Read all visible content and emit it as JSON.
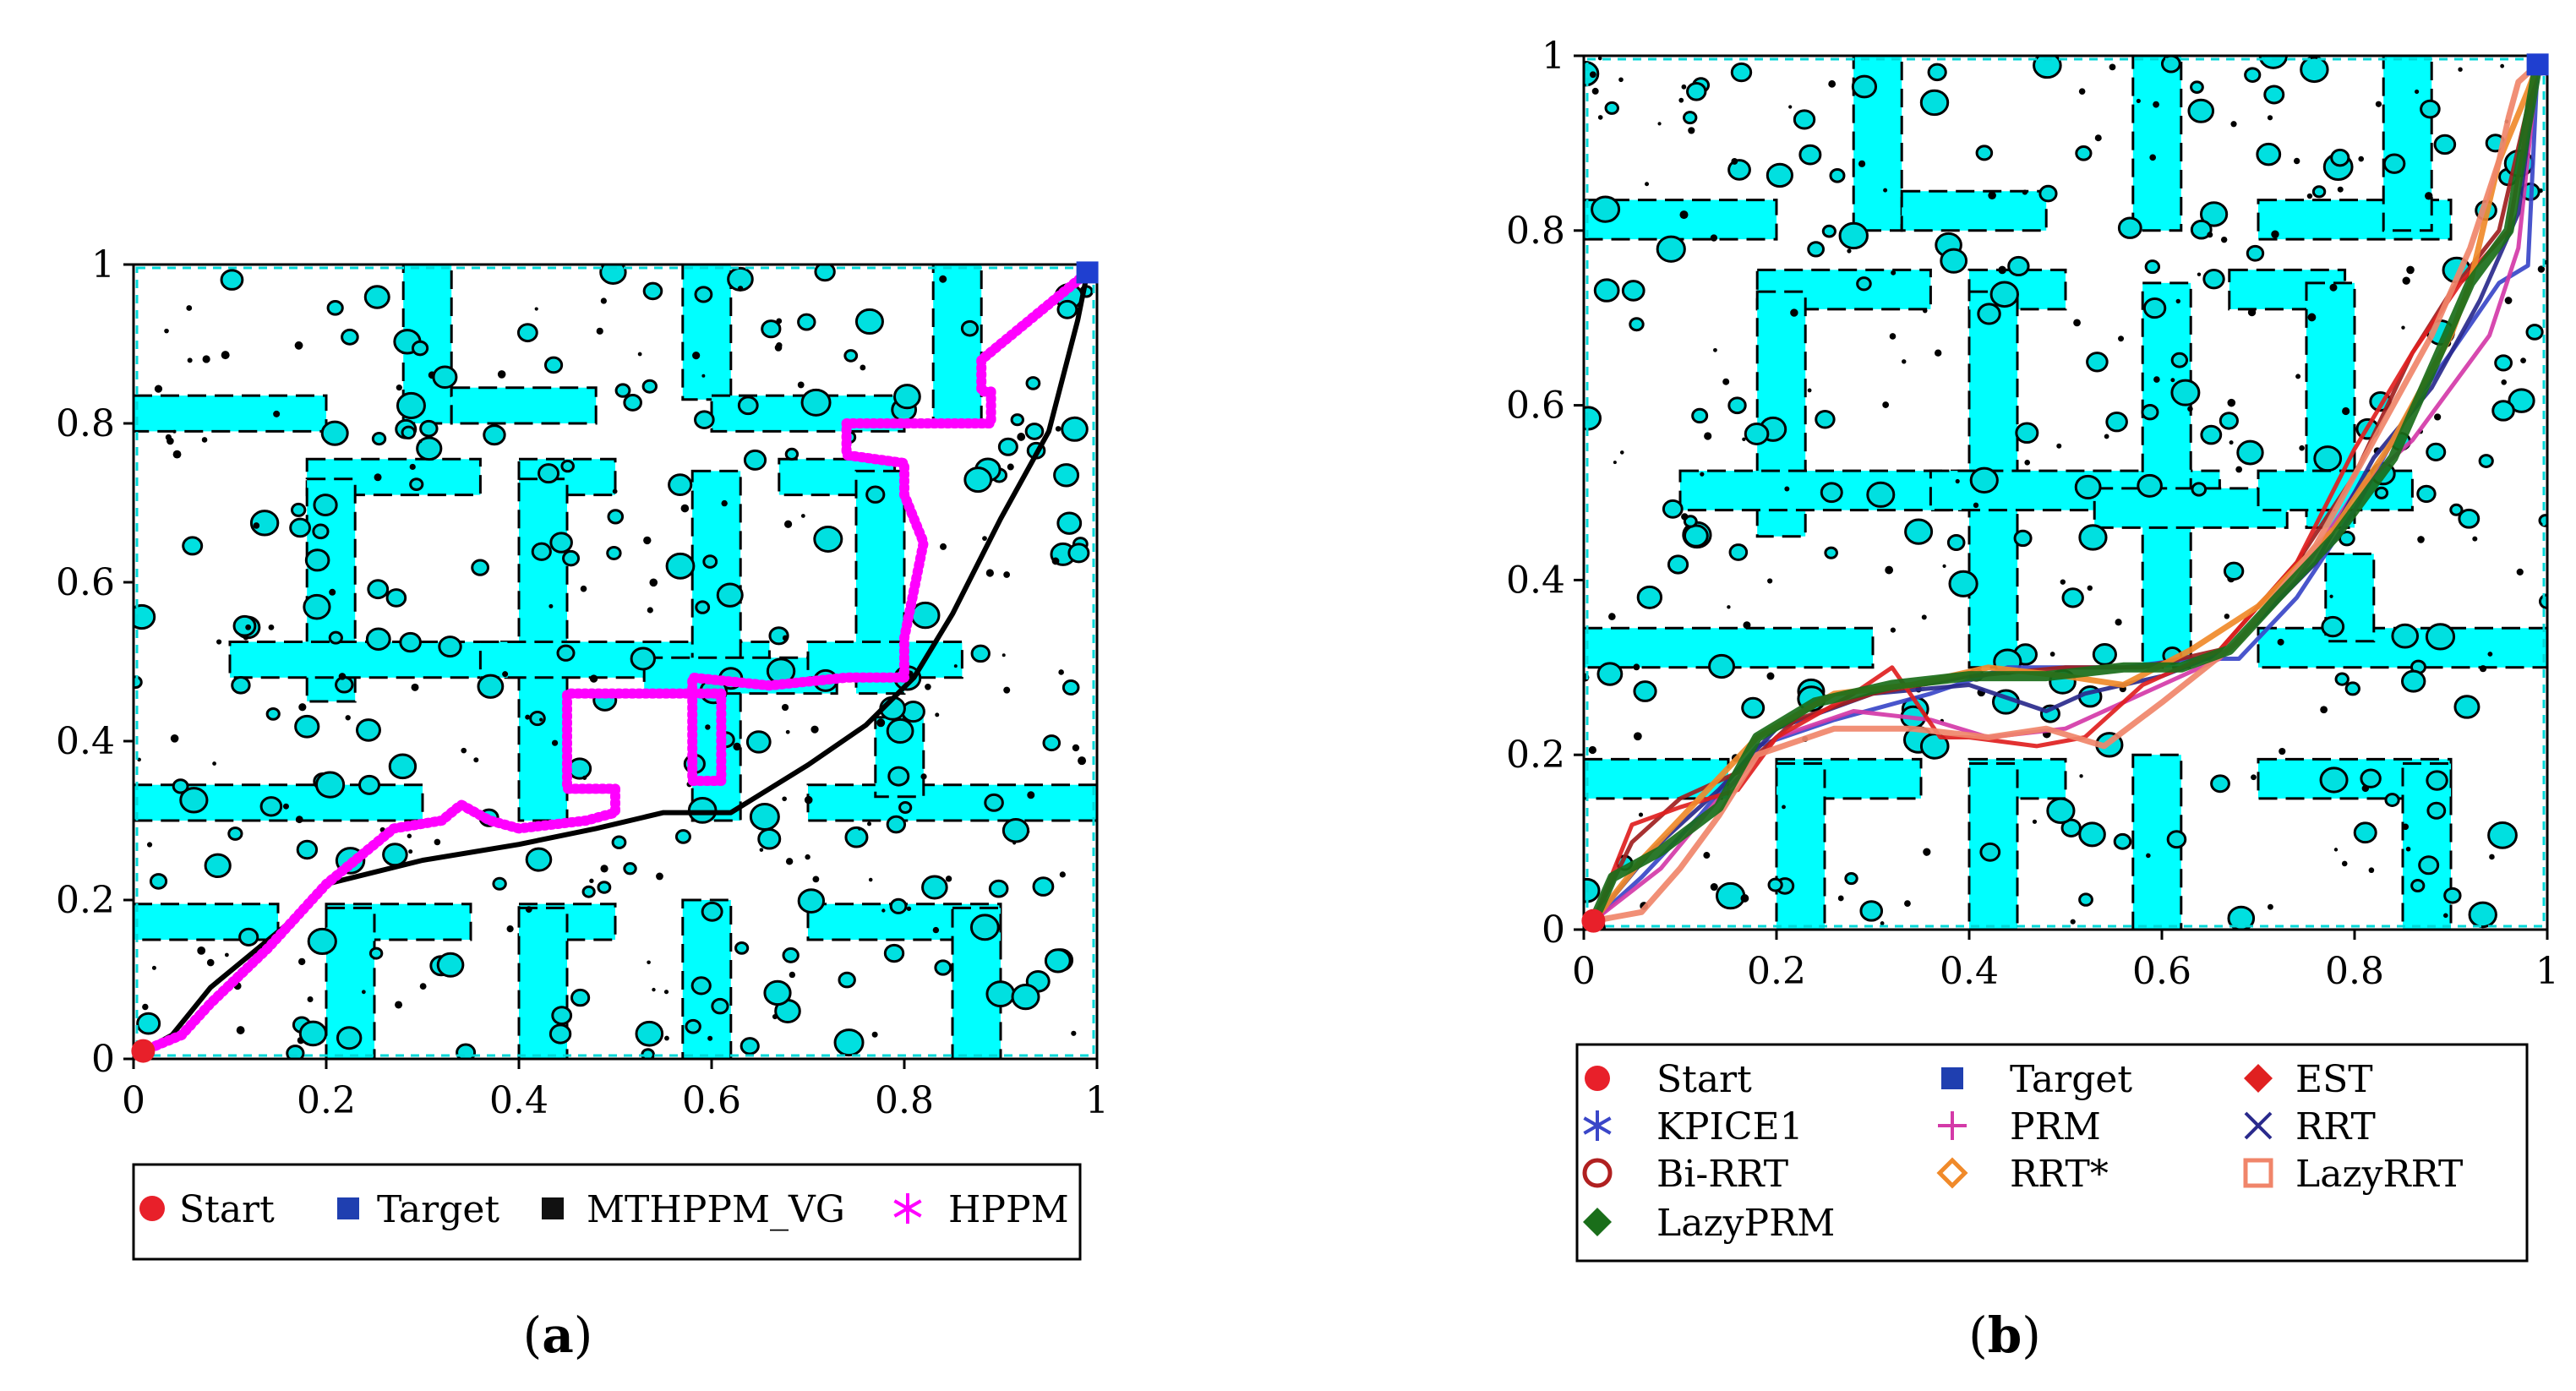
{
  "chart_data": [
    {
      "type": "line",
      "caption": "(a)",
      "xlim": [
        0,
        1
      ],
      "ylim": [
        0,
        1
      ],
      "xticks": [
        "0",
        "0.2",
        "0.4",
        "0.6",
        "0.8",
        "1"
      ],
      "yticks": [
        "0",
        "0.2",
        "0.4",
        "0.6",
        "0.8",
        "1"
      ],
      "legend_placement": "bottom",
      "start": {
        "x": 0.01,
        "y": 0.01
      },
      "target": {
        "x": 0.99,
        "y": 0.99
      },
      "series": [
        {
          "name": "MTHPPM_VG",
          "color": "#000000",
          "x": [
            0.01,
            0.04,
            0.06,
            0.08,
            0.12,
            0.16,
            0.2,
            0.3,
            0.4,
            0.48,
            0.55,
            0.62,
            0.7,
            0.76,
            0.81,
            0.85,
            0.9,
            0.95,
            0.98,
            0.99
          ],
          "y": [
            0.01,
            0.03,
            0.06,
            0.09,
            0.13,
            0.17,
            0.22,
            0.25,
            0.27,
            0.29,
            0.31,
            0.31,
            0.37,
            0.42,
            0.48,
            0.56,
            0.68,
            0.79,
            0.93,
            0.99
          ]
        },
        {
          "name": "HPPM",
          "color": "#ff00ff",
          "x": [
            0.01,
            0.05,
            0.08,
            0.14,
            0.2,
            0.27,
            0.32,
            0.34,
            0.37,
            0.4,
            0.47,
            0.5,
            0.5,
            0.45,
            0.45,
            0.58,
            0.58,
            0.61,
            0.61,
            0.58,
            0.58,
            0.66,
            0.74,
            0.8,
            0.8,
            0.82,
            0.8,
            0.8,
            0.74,
            0.74,
            0.89,
            0.89,
            0.88,
            0.88,
            0.93,
            0.99
          ],
          "y": [
            0.01,
            0.03,
            0.07,
            0.14,
            0.22,
            0.29,
            0.3,
            0.32,
            0.3,
            0.29,
            0.3,
            0.31,
            0.34,
            0.34,
            0.46,
            0.46,
            0.35,
            0.35,
            0.46,
            0.46,
            0.48,
            0.47,
            0.48,
            0.48,
            0.53,
            0.65,
            0.71,
            0.75,
            0.76,
            0.8,
            0.8,
            0.84,
            0.84,
            0.88,
            0.93,
            0.99
          ]
        }
      ],
      "legend": [
        "Start",
        "Target",
        "MTHPPM_VG",
        "HPPM"
      ]
    },
    {
      "type": "line",
      "caption": "(b)",
      "xlim": [
        0,
        1
      ],
      "ylim": [
        0,
        1
      ],
      "xticks": [
        "0",
        "0.2",
        "0.4",
        "0.6",
        "0.8",
        "1"
      ],
      "yticks": [
        "0",
        "0.2",
        "0.4",
        "0.6",
        "0.8",
        "1"
      ],
      "legend_placement": "bottom",
      "start": {
        "x": 0.01,
        "y": 0.01
      },
      "target": {
        "x": 0.99,
        "y": 0.99
      },
      "series": [
        {
          "name": "KPICE1",
          "color": "#3a46c8",
          "x": [
            0.01,
            0.06,
            0.12,
            0.18,
            0.26,
            0.36,
            0.44,
            0.5,
            0.56,
            0.63,
            0.68,
            0.74,
            0.8,
            0.86,
            0.9,
            0.95,
            0.98,
            0.99
          ],
          "y": [
            0.01,
            0.06,
            0.13,
            0.21,
            0.24,
            0.27,
            0.3,
            0.3,
            0.3,
            0.31,
            0.31,
            0.38,
            0.48,
            0.6,
            0.66,
            0.74,
            0.76,
            0.99
          ]
        },
        {
          "name": "PRM",
          "color": "#d43aa8",
          "x": [
            0.01,
            0.08,
            0.14,
            0.2,
            0.28,
            0.36,
            0.42,
            0.5,
            0.58,
            0.66,
            0.74,
            0.8,
            0.86,
            0.9,
            0.94,
            0.97,
            0.99
          ],
          "y": [
            0.01,
            0.07,
            0.15,
            0.22,
            0.25,
            0.24,
            0.22,
            0.23,
            0.27,
            0.31,
            0.4,
            0.5,
            0.56,
            0.62,
            0.68,
            0.78,
            0.99
          ]
        },
        {
          "name": "RRT",
          "color": "#2a2a8c",
          "x": [
            0.01,
            0.07,
            0.14,
            0.2,
            0.3,
            0.4,
            0.48,
            0.52,
            0.6,
            0.67,
            0.76,
            0.82,
            0.88,
            0.93,
            0.97,
            0.99
          ],
          "y": [
            0.01,
            0.09,
            0.16,
            0.23,
            0.27,
            0.28,
            0.25,
            0.27,
            0.29,
            0.32,
            0.42,
            0.54,
            0.62,
            0.72,
            0.82,
            0.99
          ]
        },
        {
          "name": "Bi-RRT",
          "color": "#a02020",
          "x": [
            0.01,
            0.05,
            0.1,
            0.16,
            0.22,
            0.3,
            0.4,
            0.5,
            0.58,
            0.66,
            0.74,
            0.8,
            0.86,
            0.9,
            0.95,
            0.99
          ],
          "y": [
            0.01,
            0.1,
            0.15,
            0.18,
            0.24,
            0.27,
            0.29,
            0.3,
            0.3,
            0.32,
            0.42,
            0.52,
            0.66,
            0.73,
            0.8,
            0.99
          ]
        },
        {
          "name": "EST",
          "color": "#e02020",
          "x": [
            0.01,
            0.05,
            0.1,
            0.16,
            0.2,
            0.28,
            0.32,
            0.37,
            0.4,
            0.47,
            0.52,
            0.58,
            0.66,
            0.74,
            0.8,
            0.86,
            0.91,
            0.96,
            0.99
          ],
          "y": [
            0.01,
            0.12,
            0.14,
            0.16,
            0.22,
            0.27,
            0.3,
            0.22,
            0.22,
            0.21,
            0.22,
            0.28,
            0.32,
            0.42,
            0.55,
            0.66,
            0.74,
            0.8,
            0.99
          ]
        },
        {
          "name": "RRT*",
          "color": "#f08a2a",
          "x": [
            0.01,
            0.06,
            0.12,
            0.18,
            0.26,
            0.34,
            0.42,
            0.5,
            0.56,
            0.63,
            0.7,
            0.78,
            0.84,
            0.88,
            0.9,
            0.92,
            0.95,
            0.98,
            0.99
          ],
          "y": [
            0.01,
            0.08,
            0.15,
            0.22,
            0.27,
            0.28,
            0.3,
            0.29,
            0.28,
            0.32,
            0.37,
            0.46,
            0.56,
            0.64,
            0.68,
            0.74,
            0.88,
            0.96,
            0.99
          ]
        },
        {
          "name": "LazyRRT",
          "color": "#f0856a",
          "x": [
            0.01,
            0.06,
            0.1,
            0.14,
            0.18,
            0.26,
            0.34,
            0.42,
            0.48,
            0.54,
            0.6,
            0.68,
            0.76,
            0.82,
            0.88,
            0.92,
            0.95,
            0.96,
            0.97,
            0.99
          ],
          "y": [
            0.01,
            0.02,
            0.07,
            0.13,
            0.2,
            0.23,
            0.23,
            0.22,
            0.23,
            0.21,
            0.26,
            0.33,
            0.44,
            0.56,
            0.68,
            0.78,
            0.88,
            0.93,
            0.97,
            0.99
          ]
        },
        {
          "name": "LazyPRM",
          "color": "#1a6e1a",
          "x": [
            0.01,
            0.03,
            0.08,
            0.14,
            0.18,
            0.24,
            0.32,
            0.4,
            0.48,
            0.56,
            0.62,
            0.67,
            0.72,
            0.78,
            0.84,
            0.88,
            0.92,
            0.96,
            0.99
          ],
          "y": [
            0.01,
            0.06,
            0.09,
            0.14,
            0.22,
            0.26,
            0.28,
            0.29,
            0.29,
            0.3,
            0.3,
            0.32,
            0.38,
            0.45,
            0.54,
            0.64,
            0.74,
            0.8,
            0.99
          ]
        }
      ],
      "legend": [
        "Start",
        "Target",
        "EST",
        "KPICE1",
        "PRM",
        "RRT",
        "Bi-RRT",
        "RRT*",
        "LazyRRT",
        "LazyPRM"
      ]
    }
  ]
}
